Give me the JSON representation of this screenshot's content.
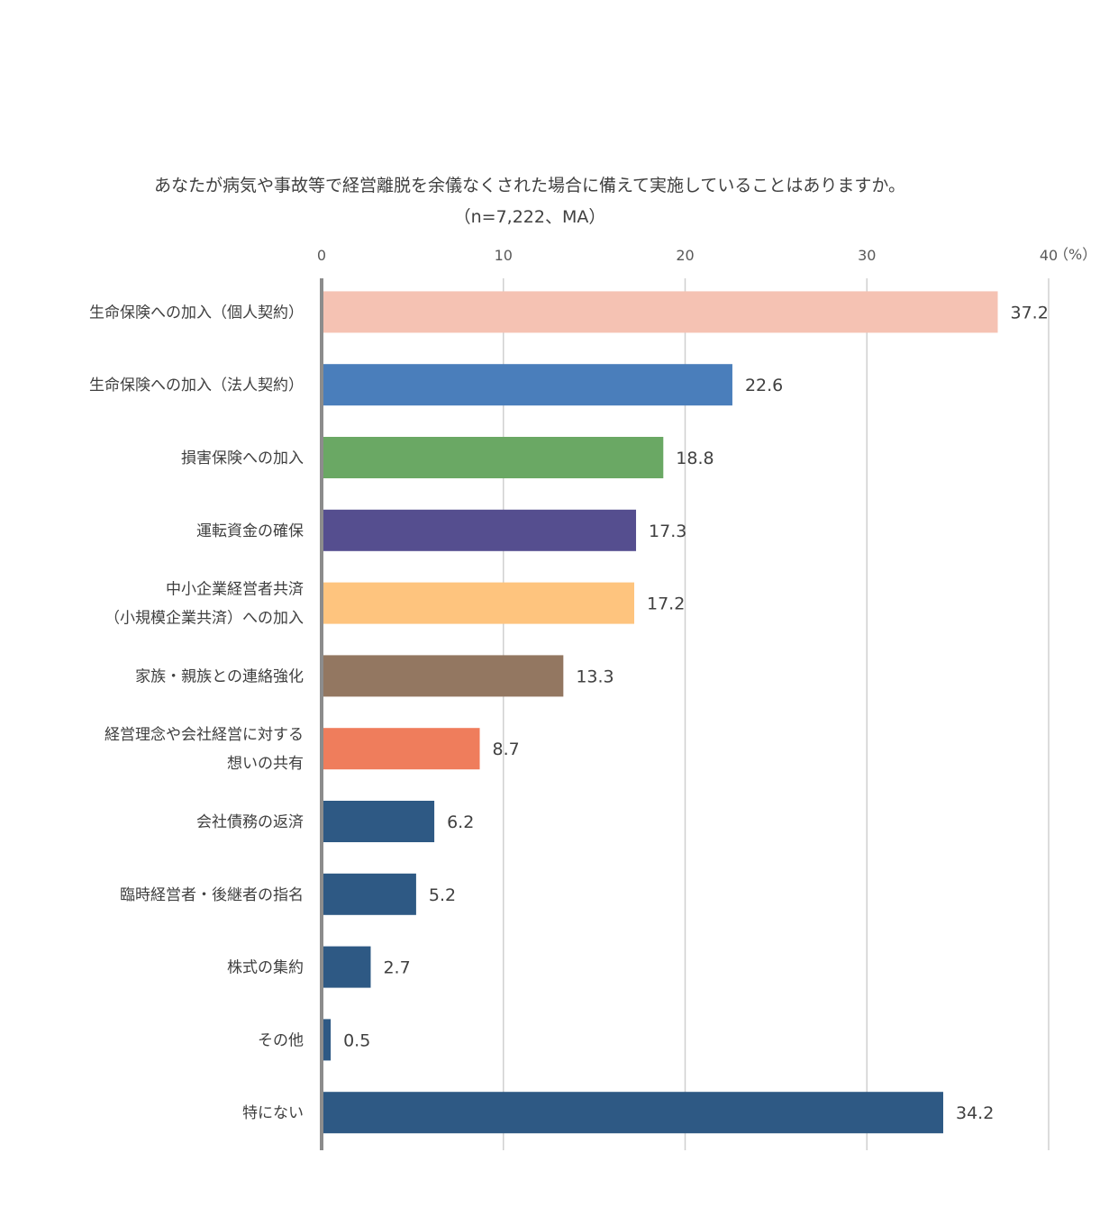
{
  "chart_data": {
    "type": "bar",
    "orientation": "horizontal",
    "title": "あなたが病気や事故等で経営離脱を余儀なくされた場合に備えて実施していることはありますか。",
    "subtitle": "（n=7,222、MA）",
    "unit_label": "（%）",
    "xlim": [
      0,
      40
    ],
    "ticks": [
      0,
      10,
      20,
      30,
      40
    ],
    "tick_labels": [
      "0",
      "10",
      "20",
      "30",
      "40"
    ],
    "grid": true,
    "categories": [
      [
        "生命保険への加入（個人契約）"
      ],
      [
        "生命保険への加入（法人契約）"
      ],
      [
        "損害保険への加入"
      ],
      [
        "運転資金の確保"
      ],
      [
        "中小企業経営者共済",
        "（小規模企業共済）への加入"
      ],
      [
        "家族・親族との連絡強化"
      ],
      [
        "経営理念や会社経営に対する",
        "想いの共有"
      ],
      [
        "会社債務の返済"
      ],
      [
        "臨時経営者・後継者の指名"
      ],
      [
        "株式の集約"
      ],
      [
        "その他"
      ],
      [
        "特にない"
      ]
    ],
    "values": [
      37.2,
      22.6,
      18.8,
      17.3,
      17.2,
      13.3,
      8.7,
      6.2,
      5.2,
      2.7,
      0.5,
      34.2
    ],
    "value_labels": [
      "37.2",
      "22.6",
      "18.8",
      "17.3",
      "17.2",
      "13.3",
      "8.7",
      "6.2",
      "5.2",
      "2.7",
      "0.5",
      "34.2"
    ],
    "colors": [
      "#F5C2B3",
      "#4A7EBB",
      "#6AA864",
      "#554E8F",
      "#FEC47E",
      "#937761",
      "#EF7D5C",
      "#2E5984",
      "#2E5984",
      "#2E5984",
      "#2E5984",
      "#2E5984"
    ]
  }
}
